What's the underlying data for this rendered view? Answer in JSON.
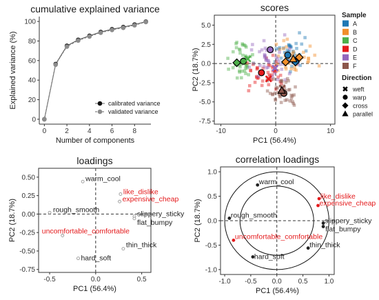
{
  "colors": {
    "A": "#1f78b4",
    "B": "#f28e2b",
    "C": "#4daf4a",
    "D": "#e41a1c",
    "E": "#9467bd",
    "F": "#8c564b",
    "calibrated": "#111111",
    "validated": "#8c8c8c",
    "loading_red": "#e41a1c",
    "loading_dark": "#222222"
  },
  "chart_data": [
    {
      "id": "variance",
      "type": "line",
      "title": "cumulative explained variance",
      "xlabel": "Number of components",
      "ylabel": "Explained variance (%)",
      "xlim": [
        -0.45,
        9.45
      ],
      "ylim": [
        -5,
        105
      ],
      "xticks": [
        "0",
        "2",
        "4",
        "6",
        "8"
      ],
      "yticks": [
        "0",
        "20",
        "40",
        "60",
        "80",
        "100"
      ],
      "x": [
        0,
        1,
        2,
        3,
        4,
        5,
        6,
        7,
        8,
        9
      ],
      "series": [
        {
          "name": "calibrated variance",
          "values": [
            0,
            56.4,
            75.1,
            81.2,
            85.3,
            89.2,
            92.0,
            94.2,
            96.8,
            99.8
          ]
        },
        {
          "name": "validated variance",
          "values": [
            0,
            55.8,
            74.3,
            80.5,
            84.6,
            88.5,
            91.3,
            93.5,
            96.1,
            99.4
          ]
        }
      ],
      "legend_position": "bottom-right"
    },
    {
      "id": "scores",
      "type": "scatter",
      "title": "scores",
      "xlabel": "PC1 (56.4%)",
      "ylabel": "PC2 (18.7%)",
      "xlim": [
        -11.2,
        10.8
      ],
      "ylim": [
        -7.9,
        6.3
      ],
      "xticks": [
        "-10",
        "0",
        "10"
      ],
      "yticks": [
        "5.0",
        "2.5",
        "0.0",
        "-2.5",
        "-5.0",
        "-7.5"
      ],
      "legend_sample_title": "Sample",
      "legend_samples": [
        "A",
        "B",
        "C",
        "D",
        "E",
        "F"
      ],
      "legend_direction_title": "Direction",
      "legend_directions": [
        "weft",
        "warp",
        "cross",
        "parallel"
      ],
      "centroids": [
        {
          "sample": "A",
          "direction": "warp",
          "x": 2.2,
          "y": 1.1
        },
        {
          "sample": "A",
          "direction": "cross",
          "x": 3.6,
          "y": 0.2
        },
        {
          "sample": "B",
          "direction": "parallel",
          "x": 3.2,
          "y": 0.6
        },
        {
          "sample": "B",
          "direction": "cross",
          "x": 4.3,
          "y": 0.8
        },
        {
          "sample": "B",
          "direction": "cross",
          "x": 1.8,
          "y": 0.2
        },
        {
          "sample": "C",
          "direction": "warp",
          "x": -5.9,
          "y": 0.3
        },
        {
          "sample": "C",
          "direction": "weft",
          "x": -5.1,
          "y": 0.6
        },
        {
          "sample": "C",
          "direction": "cross",
          "x": -7.1,
          "y": 0.1
        },
        {
          "sample": "D",
          "direction": "warp",
          "x": -2.6,
          "y": -1.2
        },
        {
          "sample": "D",
          "direction": "weft",
          "x": -1.3,
          "y": -2.0
        },
        {
          "sample": "E",
          "direction": "warp",
          "x": -1.0,
          "y": 1.8
        },
        {
          "sample": "E",
          "direction": "weft",
          "x": -0.1,
          "y": -0.6
        },
        {
          "sample": "F",
          "direction": "weft",
          "x": 1.2,
          "y": -3.2
        },
        {
          "sample": "F",
          "direction": "warp",
          "x": 1.5,
          "y": -3.9
        },
        {
          "sample": "F",
          "direction": "parallel",
          "x": 1.1,
          "y": -3.5
        }
      ]
    },
    {
      "id": "loadings",
      "type": "scatter",
      "title": "loadings",
      "xlabel": "PC1 (56.4%)",
      "ylabel": "PC2 (18.7%)",
      "xlim": [
        -0.62,
        0.6
      ],
      "ylim": [
        -0.79,
        0.62
      ],
      "xticks": [
        "-0.5",
        "0.0",
        "0.5"
      ],
      "yticks": [
        "0.50",
        "0.25",
        "0.00",
        "-0.25",
        "-0.50",
        "-0.75"
      ],
      "points": [
        {
          "label": "warm_cool",
          "x": -0.14,
          "y": 0.44,
          "color": "dark"
        },
        {
          "label": "like_dislike",
          "x": 0.27,
          "y": 0.27,
          "color": "red"
        },
        {
          "label": "expensive_cheap",
          "x": 0.26,
          "y": 0.17,
          "color": "red"
        },
        {
          "label": "rough_smooth",
          "x": -0.5,
          "y": 0.02,
          "color": "dark"
        },
        {
          "label": "slippery_sticky",
          "x": 0.42,
          "y": -0.03,
          "color": "dark"
        },
        {
          "label": "flat_bumpy",
          "x": 0.42,
          "y": -0.06,
          "color": "dark"
        },
        {
          "label": "uncomfortable_comfortable",
          "x": -0.36,
          "y": -0.29,
          "color": "red"
        },
        {
          "label": "thin_thick",
          "x": 0.3,
          "y": -0.47,
          "color": "dark"
        },
        {
          "label": "hard_soft",
          "x": -0.19,
          "y": -0.6,
          "color": "dark"
        }
      ]
    },
    {
      "id": "correlation_loadings",
      "type": "scatter",
      "title": "correlation loadings",
      "xlabel": "PC1 (56.4%)",
      "ylabel": "PC2 (18.7%)",
      "xlim": [
        -1.08,
        1.1
      ],
      "ylim": [
        -1.1,
        1.1
      ],
      "xticks": [
        "-1.0",
        "-0.5",
        "0.0",
        "0.5",
        "1.0"
      ],
      "yticks": [
        "1.0",
        "0.5",
        "0.0",
        "-0.5",
        "-1.0"
      ],
      "circles": [
        1.0,
        0.707
      ],
      "points": [
        {
          "label": "warm_cool",
          "x": -0.37,
          "y": 0.73,
          "color": "dark"
        },
        {
          "label": "like_dislike",
          "x": 0.81,
          "y": 0.45,
          "color": "red"
        },
        {
          "label": "expensive_cheap",
          "x": 0.79,
          "y": 0.31,
          "color": "red"
        },
        {
          "label": "rough_smooth",
          "x": -0.91,
          "y": 0.05,
          "color": "dark"
        },
        {
          "label": "slippery_sticky",
          "x": 0.89,
          "y": -0.05,
          "color": "dark"
        },
        {
          "label": "flat_bumpy",
          "x": 0.89,
          "y": -0.12,
          "color": "dark"
        },
        {
          "label": "uncomfortable_comfortable",
          "x": -0.83,
          "y": -0.4,
          "color": "red"
        },
        {
          "label": "thin_thick",
          "x": 0.6,
          "y": -0.56,
          "color": "dark"
        },
        {
          "label": "hard_soft",
          "x": -0.46,
          "y": -0.74,
          "color": "dark"
        }
      ]
    }
  ]
}
